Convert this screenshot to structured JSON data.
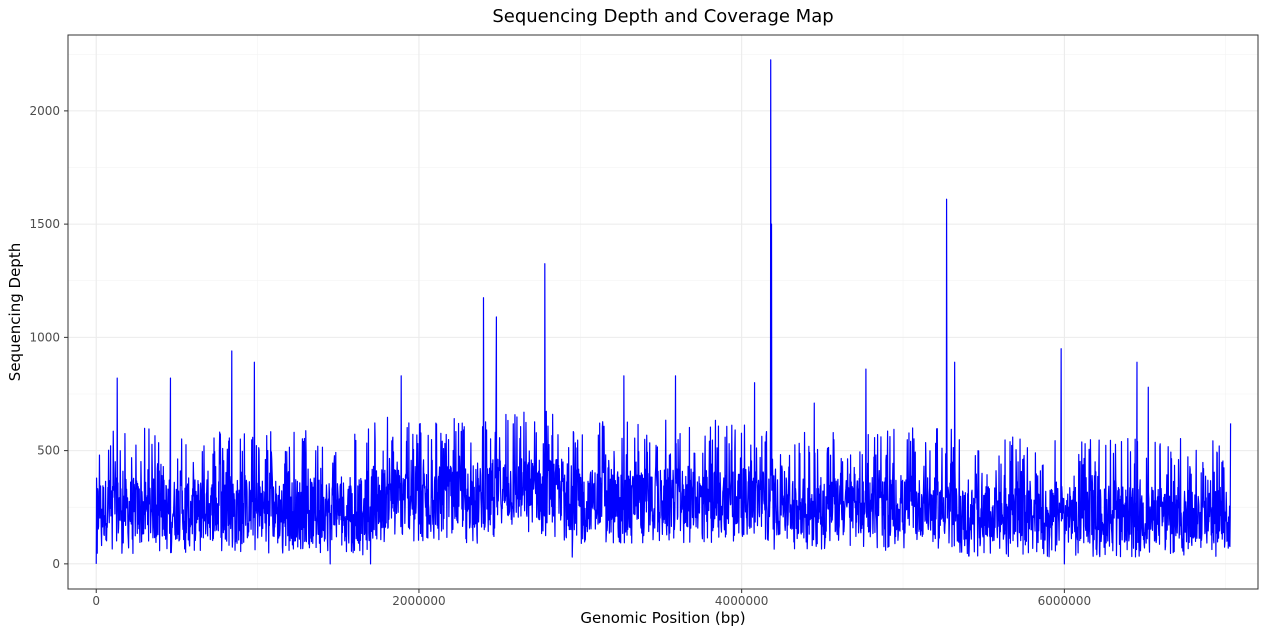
{
  "chart_data": {
    "type": "line",
    "title": "Sequencing Depth and Coverage Map",
    "xlabel": "Genomic Position (bp)",
    "ylabel": "Sequencing Depth",
    "xlim": [
      -175000,
      7200000
    ],
    "ylim": [
      -111,
      2335
    ],
    "x_ticks": [
      0,
      2000000,
      4000000,
      6000000
    ],
    "x_tick_labels": [
      "0",
      "2000000",
      "4000000",
      "6000000"
    ],
    "y_ticks": [
      0,
      500,
      1000,
      1500,
      2000
    ],
    "y_tick_labels": [
      "0",
      "500",
      "1000",
      "1500",
      "2000"
    ],
    "grid": true,
    "legend": "none",
    "series": [
      {
        "color": "#0000ff",
        "x_range": [
          0,
          7030000
        ],
        "baseline_segments": [
          {
            "x": [
              0,
              1680000
            ],
            "low": 100,
            "high": 380
          },
          {
            "x": [
              1680000,
              2450000
            ],
            "low": 150,
            "high": 430
          },
          {
            "x": [
              2450000,
              2900000
            ],
            "low": 180,
            "high": 470
          },
          {
            "x": [
              2900000,
              4200000
            ],
            "low": 150,
            "high": 420
          },
          {
            "x": [
              4200000,
              5300000
            ],
            "low": 120,
            "high": 380
          },
          {
            "x": [
              5300000,
              7030000
            ],
            "low": 90,
            "high": 340
          }
        ],
        "peaks": [
          [
            0,
            0
          ],
          [
            20000,
            480
          ],
          [
            130000,
            820
          ],
          [
            460000,
            820
          ],
          [
            840000,
            940
          ],
          [
            980000,
            890
          ],
          [
            1450000,
            0
          ],
          [
            1700000,
            0
          ],
          [
            1890000,
            830
          ],
          [
            2400000,
            1175
          ],
          [
            2480000,
            1090
          ],
          [
            2780000,
            1325
          ],
          [
            2950000,
            30
          ],
          [
            3270000,
            830
          ],
          [
            3590000,
            830
          ],
          [
            4080000,
            800
          ],
          [
            4180000,
            2225
          ],
          [
            4185000,
            1500
          ],
          [
            4450000,
            710
          ],
          [
            4770000,
            860
          ],
          [
            5270000,
            1610
          ],
          [
            5320000,
            890
          ],
          [
            5980000,
            950
          ],
          [
            6000000,
            0
          ],
          [
            6450000,
            890
          ],
          [
            6520000,
            780
          ],
          [
            7030000,
            620
          ]
        ]
      }
    ]
  }
}
